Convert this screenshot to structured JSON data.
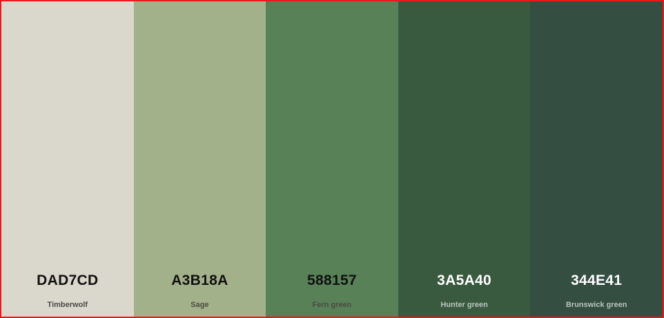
{
  "palette": {
    "swatches": [
      {
        "hex": "DAD7CD",
        "name": "Timberwolf",
        "color": "#DAD7CD"
      },
      {
        "hex": "A3B18A",
        "name": "Sage",
        "color": "#A3B18A"
      },
      {
        "hex": "588157",
        "name": "Fern green",
        "color": "#588157"
      },
      {
        "hex": "3A5A40",
        "name": "Hunter green",
        "color": "#3A5A40"
      },
      {
        "hex": "344E41",
        "name": "Brunswick green",
        "color": "#344E41"
      }
    ]
  }
}
